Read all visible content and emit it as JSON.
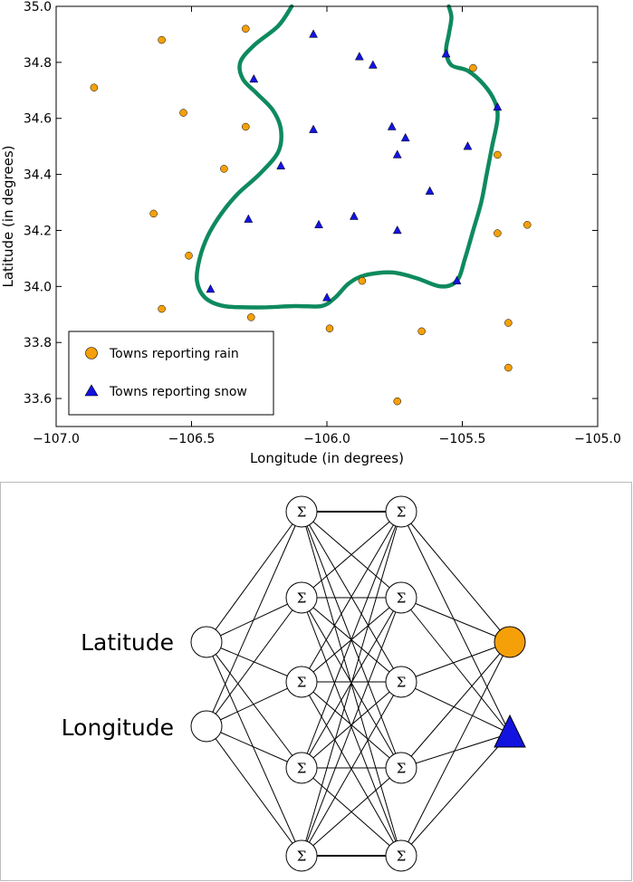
{
  "chart_data": [
    {
      "type": "scatter",
      "xlabel": "Longitude (in degrees)",
      "ylabel": "Latitude (in degrees)",
      "xlim": [
        -107.0,
        -105.0
      ],
      "ylim": [
        33.5,
        35.0
      ],
      "xticks": [
        -107.0,
        -106.5,
        -106.0,
        -105.5,
        -105.0
      ],
      "xtick_labels": [
        "−107.0",
        "−106.5",
        "−106.0",
        "−105.5",
        "−105.0"
      ],
      "yticks": [
        33.6,
        33.8,
        34.0,
        34.2,
        34.4,
        34.6,
        34.8,
        35.0
      ],
      "ytick_labels": [
        "33.6",
        "33.8",
        "34.0",
        "34.2",
        "34.4",
        "34.6",
        "34.8",
        "35.0"
      ],
      "legend_position": "bottom-left",
      "colors": {
        "rain": "#f5a009",
        "snow": "#1313e0",
        "boundary": "#0e8a5e"
      },
      "series": [
        {
          "name": "Towns reporting rain",
          "marker": "circle",
          "points": [
            [
              -106.61,
              34.88
            ],
            [
              -106.3,
              34.92
            ],
            [
              -106.86,
              34.71
            ],
            [
              -106.53,
              34.62
            ],
            [
              -106.3,
              34.57
            ],
            [
              -106.38,
              34.42
            ],
            [
              -106.64,
              34.26
            ],
            [
              -106.51,
              34.11
            ],
            [
              -106.61,
              33.92
            ],
            [
              -106.28,
              33.89
            ],
            [
              -105.99,
              33.85
            ],
            [
              -105.87,
              34.02
            ],
            [
              -105.65,
              33.84
            ],
            [
              -105.74,
              33.59
            ],
            [
              -105.46,
              34.78
            ],
            [
              -105.37,
              34.47
            ],
            [
              -105.37,
              34.19
            ],
            [
              -105.26,
              34.22
            ],
            [
              -105.33,
              33.87
            ],
            [
              -105.33,
              33.71
            ]
          ]
        },
        {
          "name": "Towns reporting snow",
          "marker": "triangle",
          "points": [
            [
              -106.05,
              34.9
            ],
            [
              -105.88,
              34.82
            ],
            [
              -105.83,
              34.79
            ],
            [
              -105.56,
              34.83
            ],
            [
              -106.27,
              34.74
            ],
            [
              -105.37,
              34.64
            ],
            [
              -106.05,
              34.56
            ],
            [
              -105.76,
              34.57
            ],
            [
              -105.71,
              34.53
            ],
            [
              -105.74,
              34.47
            ],
            [
              -105.48,
              34.5
            ],
            [
              -106.17,
              34.43
            ],
            [
              -105.62,
              34.34
            ],
            [
              -106.29,
              34.24
            ],
            [
              -106.03,
              34.22
            ],
            [
              -105.9,
              34.25
            ],
            [
              -105.74,
              34.2
            ],
            [
              -106.43,
              33.99
            ],
            [
              -106.0,
              33.96
            ],
            [
              -105.52,
              34.02
            ]
          ]
        }
      ],
      "boundary_curve": [
        [
          -106.13,
          35.0
        ],
        [
          -106.18,
          34.93
        ],
        [
          -106.27,
          34.86
        ],
        [
          -106.32,
          34.8
        ],
        [
          -106.31,
          34.74
        ],
        [
          -106.26,
          34.69
        ],
        [
          -106.2,
          34.63
        ],
        [
          -106.17,
          34.56
        ],
        [
          -106.18,
          34.48
        ],
        [
          -106.25,
          34.4
        ],
        [
          -106.33,
          34.33
        ],
        [
          -106.39,
          34.26
        ],
        [
          -106.44,
          34.18
        ],
        [
          -106.47,
          34.1
        ],
        [
          -106.48,
          34.02
        ],
        [
          -106.45,
          33.96
        ],
        [
          -106.38,
          33.93
        ],
        [
          -106.25,
          33.925
        ],
        [
          -106.12,
          33.93
        ],
        [
          -106.02,
          33.93
        ],
        [
          -105.97,
          33.96
        ],
        [
          -105.92,
          34.01
        ],
        [
          -105.86,
          34.04
        ],
        [
          -105.76,
          34.05
        ],
        [
          -105.67,
          34.03
        ],
        [
          -105.58,
          34.0
        ],
        [
          -105.52,
          34.02
        ],
        [
          -105.49,
          34.1
        ],
        [
          -105.46,
          34.2
        ],
        [
          -105.43,
          34.3
        ],
        [
          -105.41,
          34.4
        ],
        [
          -105.39,
          34.5
        ],
        [
          -105.37,
          34.6
        ],
        [
          -105.38,
          34.66
        ],
        [
          -105.42,
          34.72
        ],
        [
          -105.48,
          34.77
        ],
        [
          -105.54,
          34.79
        ],
        [
          -105.56,
          34.84
        ],
        [
          -105.55,
          34.9
        ],
        [
          -105.54,
          34.96
        ],
        [
          -105.55,
          35.0
        ]
      ]
    },
    {
      "type": "diagram",
      "inputs": [
        "Latitude",
        "Longitude"
      ],
      "hidden_node_symbol": "Σ",
      "hidden_layers": 2,
      "nodes_per_hidden_layer": 5,
      "outputs": [
        "rain",
        "snow"
      ]
    }
  ]
}
